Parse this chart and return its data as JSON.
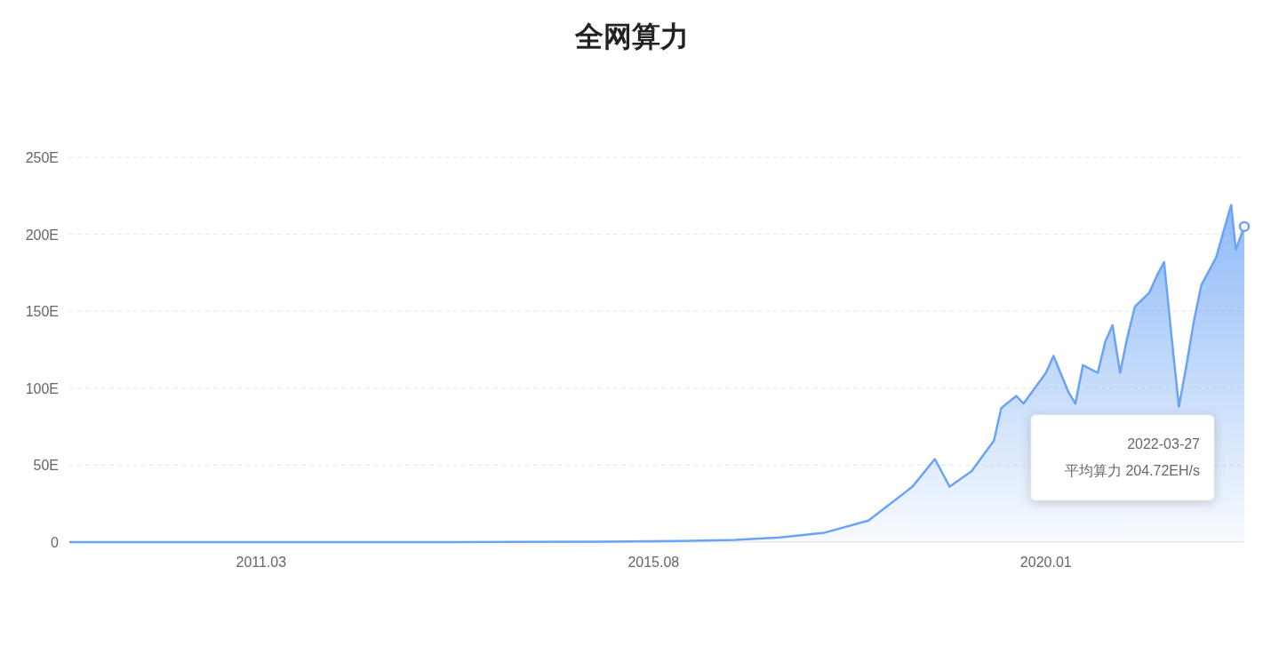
{
  "chart_data": {
    "type": "area",
    "title": "全网算力",
    "x": [
      "2009-01",
      "2011-01",
      "2013-01",
      "2014-01",
      "2015-01",
      "2016-01",
      "2016-07",
      "2017-01",
      "2017-07",
      "2018-01",
      "2018-07",
      "2018-10",
      "2018-12",
      "2019-03",
      "2019-06",
      "2019-07",
      "2019-09",
      "2019-10",
      "2020-01",
      "2020-02",
      "2020-04",
      "2020-05",
      "2020-06",
      "2020-08",
      "2020-09",
      "2020-10",
      "2020-11",
      "2020-12",
      "2021-01",
      "2021-03",
      "2021-04",
      "2021-05",
      "2021-06",
      "2021-07",
      "2021-08",
      "2021-09",
      "2021-10",
      "2021-12",
      "2022-01",
      "2022-02",
      "2022-02-20",
      "2022-03-27"
    ],
    "series": [
      {
        "color": "#6aa3f5",
        "values": [
          0,
          0,
          0,
          0.1,
          0.3,
          0.8,
          1.5,
          3,
          6,
          14,
          36,
          54,
          36,
          46,
          66,
          87,
          95,
          90,
          110,
          121,
          98,
          90,
          115,
          110,
          130,
          141,
          110,
          133,
          153,
          162,
          173,
          182,
          133,
          88,
          115,
          144,
          167,
          185,
          202,
          219,
          190,
          205
        ]
      }
    ],
    "xlim": [
      "2009-01",
      "2022-03-27"
    ],
    "xticks": [
      {
        "value": "2011-03",
        "label": "2011.03"
      },
      {
        "value": "2015-08",
        "label": "2015.08"
      },
      {
        "value": "2020-01",
        "label": "2020.01"
      }
    ],
    "ylim": [
      0,
      250
    ],
    "yticks": [
      0,
      {
        "value": 50,
        "label": "50E"
      },
      {
        "value": 100,
        "label": "100E"
      },
      {
        "value": 150,
        "label": "150E"
      },
      {
        "value": 200,
        "label": "200E"
      },
      {
        "value": 250,
        "label": "250E"
      }
    ],
    "grid": "y",
    "annotations": [
      "2022-03-27\n平均算力 204.72EH/s"
    ]
  }
}
